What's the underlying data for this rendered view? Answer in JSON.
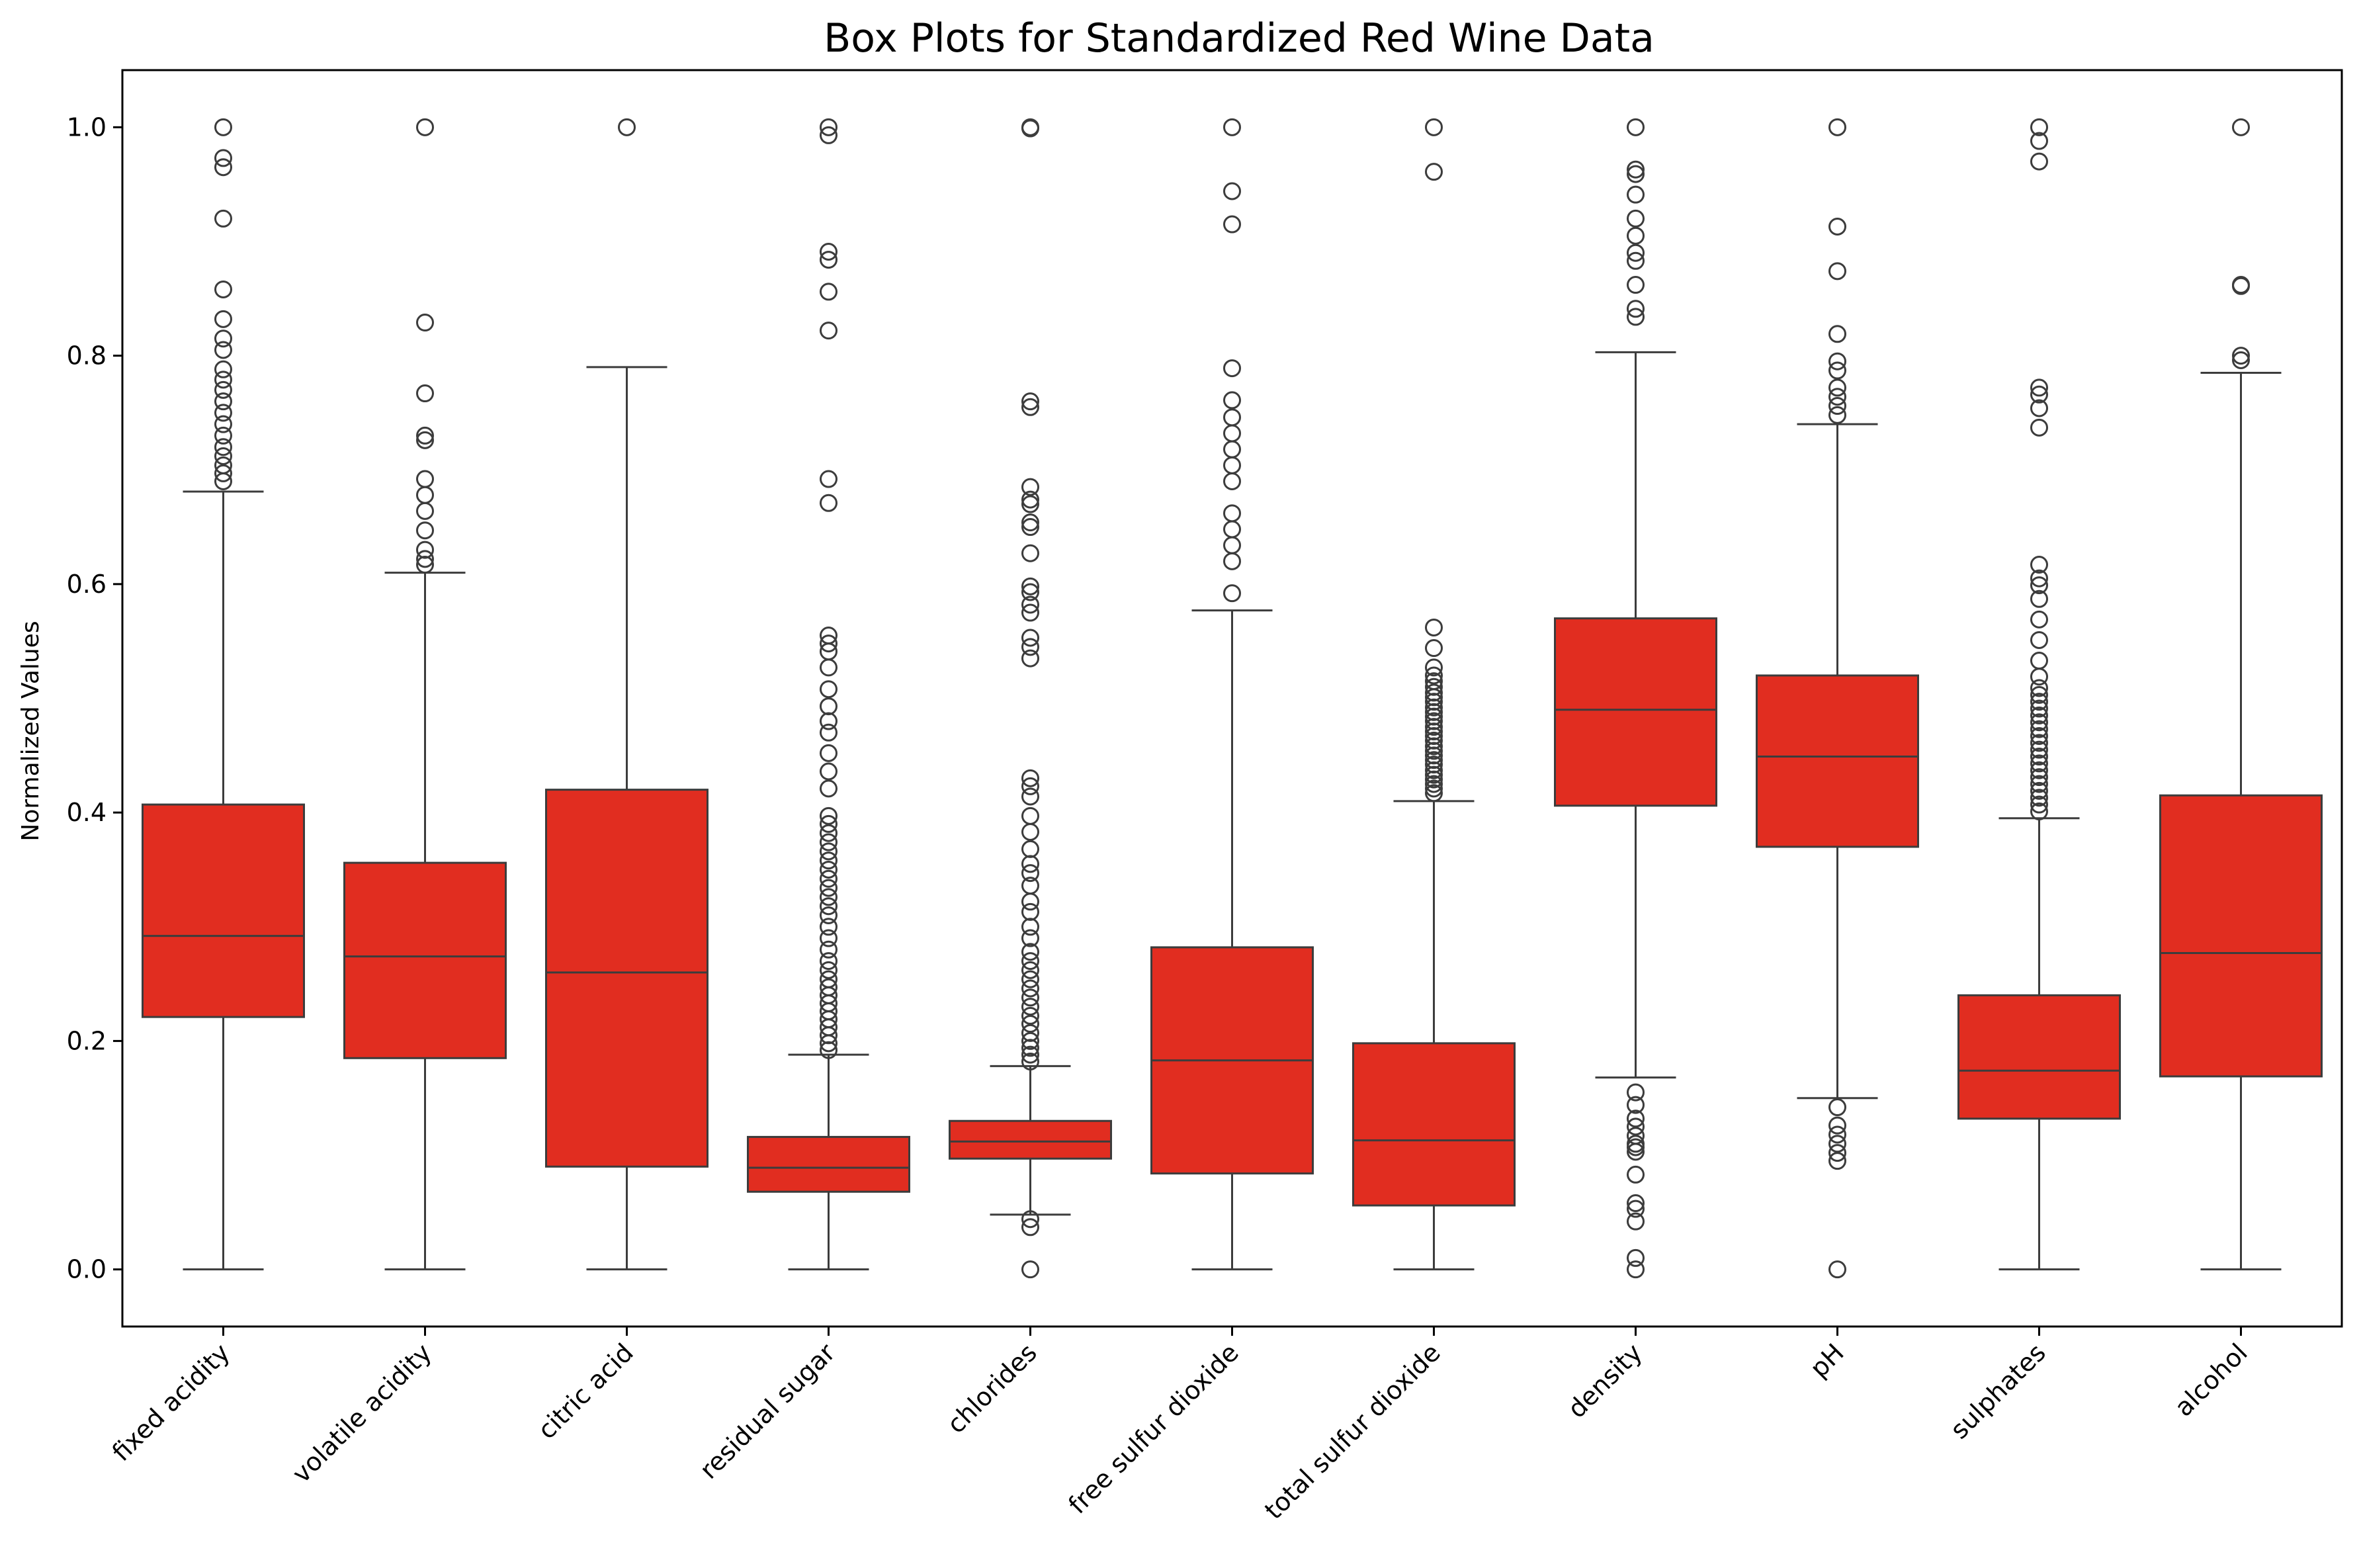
{
  "chart_data": {
    "type": "box",
    "title": "Box Plots for Standardized Red Wine Data",
    "xlabel": "",
    "ylabel": "Normalized Values",
    "ylim": [
      -0.05,
      1.05
    ],
    "yticks": [
      0.0,
      0.2,
      0.4,
      0.6,
      0.8,
      1.0
    ],
    "ytick_labels": [
      "0.0",
      "0.2",
      "0.4",
      "0.6",
      "0.8",
      "1.0"
    ],
    "grid": false,
    "legend": "none",
    "box_color": "#E12D20",
    "line_color": "#3C3C3C",
    "categories": [
      "fixed acidity",
      "volatile acidity",
      "citric acid",
      "residual sugar",
      "chlorides",
      "free sulfur dioxide",
      "total sulfur dioxide",
      "density",
      "pH",
      "sulphates",
      "alcohol"
    ],
    "boxes": [
      {
        "label": "fixed acidity",
        "whisker_low": 0.0,
        "q1": 0.221,
        "median": 0.292,
        "q3": 0.407,
        "whisker_high": 0.681,
        "outliers": [
          0.69,
          0.697,
          0.704,
          0.712,
          0.72,
          0.73,
          0.74,
          0.75,
          0.76,
          0.77,
          0.779,
          0.788,
          0.805,
          0.815,
          0.832,
          0.858,
          0.92,
          0.965,
          0.973,
          1.0
        ]
      },
      {
        "label": "volatile acidity",
        "whisker_low": 0.0,
        "q1": 0.185,
        "median": 0.274,
        "q3": 0.356,
        "whisker_high": 0.61,
        "outliers": [
          0.617,
          0.622,
          0.63,
          0.647,
          0.664,
          0.678,
          0.692,
          0.726,
          0.73,
          0.767,
          0.829,
          1.0
        ]
      },
      {
        "label": "citric acid",
        "whisker_low": 0.0,
        "q1": 0.09,
        "median": 0.26,
        "q3": 0.42,
        "whisker_high": 0.79,
        "outliers": [
          1.0
        ]
      },
      {
        "label": "residual sugar",
        "whisker_low": 0.0,
        "q1": 0.068,
        "median": 0.089,
        "q3": 0.116,
        "whisker_high": 0.188,
        "outliers": [
          0.192,
          0.198,
          0.205,
          0.212,
          0.219,
          0.226,
          0.233,
          0.24,
          0.247,
          0.254,
          0.262,
          0.27,
          0.28,
          0.29,
          0.3,
          0.31,
          0.318,
          0.326,
          0.334,
          0.342,
          0.35,
          0.358,
          0.366,
          0.374,
          0.382,
          0.39,
          0.397,
          0.421,
          0.436,
          0.452,
          0.47,
          0.48,
          0.493,
          0.508,
          0.527,
          0.541,
          0.548,
          0.555,
          0.671,
          0.692,
          0.822,
          0.856,
          0.884,
          0.891,
          0.993,
          1.0
        ]
      },
      {
        "label": "chlorides",
        "whisker_low": 0.048,
        "q1": 0.097,
        "median": 0.112,
        "q3": 0.13,
        "whisker_high": 0.178,
        "outliers": [
          0.0,
          0.037,
          0.044,
          0.182,
          0.188,
          0.194,
          0.2,
          0.207,
          0.215,
          0.222,
          0.23,
          0.238,
          0.246,
          0.254,
          0.262,
          0.27,
          0.278,
          0.29,
          0.3,
          0.313,
          0.322,
          0.336,
          0.347,
          0.355,
          0.368,
          0.383,
          0.397,
          0.414,
          0.423,
          0.43,
          0.535,
          0.545,
          0.553,
          0.575,
          0.582,
          0.593,
          0.598,
          0.627,
          0.65,
          0.654,
          0.67,
          0.674,
          0.685,
          0.755,
          0.76,
          0.999,
          1.0
        ]
      },
      {
        "label": "free sulfur dioxide",
        "whisker_low": 0.0,
        "q1": 0.084,
        "median": 0.183,
        "q3": 0.282,
        "whisker_high": 0.577,
        "outliers": [
          0.592,
          0.62,
          0.634,
          0.648,
          0.662,
          0.69,
          0.704,
          0.718,
          0.732,
          0.746,
          0.761,
          0.789,
          0.915,
          0.944,
          1.0
        ]
      },
      {
        "label": "total sulfur dioxide",
        "whisker_low": 0.0,
        "q1": 0.056,
        "median": 0.113,
        "q3": 0.198,
        "whisker_high": 0.41,
        "outliers": [
          0.417,
          0.421,
          0.425,
          0.429,
          0.433,
          0.437,
          0.442,
          0.446,
          0.45,
          0.454,
          0.458,
          0.463,
          0.467,
          0.471,
          0.475,
          0.48,
          0.484,
          0.488,
          0.492,
          0.497,
          0.501,
          0.505,
          0.51,
          0.515,
          0.52,
          0.527,
          0.544,
          0.562,
          0.961,
          1.0
        ]
      },
      {
        "label": "density",
        "whisker_low": 0.168,
        "q1": 0.406,
        "median": 0.49,
        "q3": 0.57,
        "whisker_high": 0.803,
        "outliers": [
          0.0,
          0.01,
          0.042,
          0.053,
          0.058,
          0.083,
          0.103,
          0.107,
          0.11,
          0.117,
          0.125,
          0.132,
          0.144,
          0.155,
          0.834,
          0.841,
          0.862,
          0.883,
          0.89,
          0.905,
          0.92,
          0.941,
          0.959,
          0.963,
          1.0
        ]
      },
      {
        "label": "pH",
        "whisker_low": 0.15,
        "q1": 0.37,
        "median": 0.449,
        "q3": 0.52,
        "whisker_high": 0.74,
        "outliers": [
          0.0,
          0.095,
          0.102,
          0.11,
          0.118,
          0.126,
          0.142,
          0.748,
          0.756,
          0.764,
          0.772,
          0.787,
          0.795,
          0.819,
          0.874,
          0.913,
          1.0
        ]
      },
      {
        "label": "sulphates",
        "whisker_low": 0.0,
        "q1": 0.132,
        "median": 0.174,
        "q3": 0.24,
        "whisker_high": 0.395,
        "outliers": [
          0.401,
          0.407,
          0.413,
          0.419,
          0.425,
          0.431,
          0.437,
          0.443,
          0.449,
          0.455,
          0.461,
          0.467,
          0.473,
          0.479,
          0.485,
          0.491,
          0.497,
          0.503,
          0.509,
          0.519,
          0.533,
          0.551,
          0.569,
          0.587,
          0.599,
          0.605,
          0.617,
          0.737,
          0.754,
          0.766,
          0.772,
          0.97,
          0.988,
          1.0
        ]
      },
      {
        "label": "alcohol",
        "whisker_low": 0.0,
        "q1": 0.169,
        "median": 0.277,
        "q3": 0.415,
        "whisker_high": 0.785,
        "outliers": [
          0.796,
          0.8,
          0.861,
          0.862,
          1.0
        ]
      }
    ]
  }
}
